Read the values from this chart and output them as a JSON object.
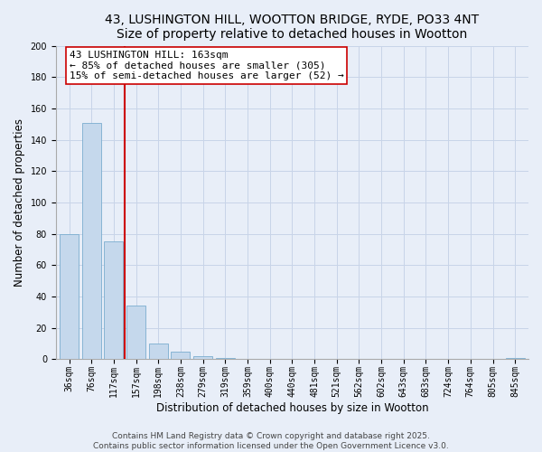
{
  "title": "43, LUSHINGTON HILL, WOOTTON BRIDGE, RYDE, PO33 4NT",
  "subtitle": "Size of property relative to detached houses in Wootton",
  "xlabel": "Distribution of detached houses by size in Wootton",
  "ylabel": "Number of detached properties",
  "bar_labels": [
    "36sqm",
    "76sqm",
    "117sqm",
    "157sqm",
    "198sqm",
    "238sqm",
    "279sqm",
    "319sqm",
    "359sqm",
    "400sqm",
    "440sqm",
    "481sqm",
    "521sqm",
    "562sqm",
    "602sqm",
    "643sqm",
    "683sqm",
    "724sqm",
    "764sqm",
    "805sqm",
    "845sqm"
  ],
  "bar_values": [
    80,
    151,
    75,
    34,
    10,
    5,
    2,
    1,
    0,
    0,
    0,
    0,
    0,
    0,
    0,
    0,
    0,
    0,
    0,
    0,
    1
  ],
  "bar_color": "#c5d8ec",
  "bar_edge_color": "#7aadcf",
  "vline_color": "#cc0000",
  "annotation_text": "43 LUSHINGTON HILL: 163sqm\n← 85% of detached houses are smaller (305)\n15% of semi-detached houses are larger (52) →",
  "annotation_box_color": "#ffffff",
  "annotation_box_edgecolor": "#cc0000",
  "ylim": [
    0,
    200
  ],
  "yticks": [
    0,
    20,
    40,
    60,
    80,
    100,
    120,
    140,
    160,
    180,
    200
  ],
  "grid_color": "#c8d4e8",
  "footer_line1": "Contains HM Land Registry data © Crown copyright and database right 2025.",
  "footer_line2": "Contains public sector information licensed under the Open Government Licence v3.0.",
  "bg_color": "#e8eef8",
  "title_fontsize": 10,
  "subtitle_fontsize": 9,
  "tick_fontsize": 7,
  "xlabel_fontsize": 8.5,
  "ylabel_fontsize": 8.5,
  "annotation_fontsize": 8,
  "footer_fontsize": 6.5
}
